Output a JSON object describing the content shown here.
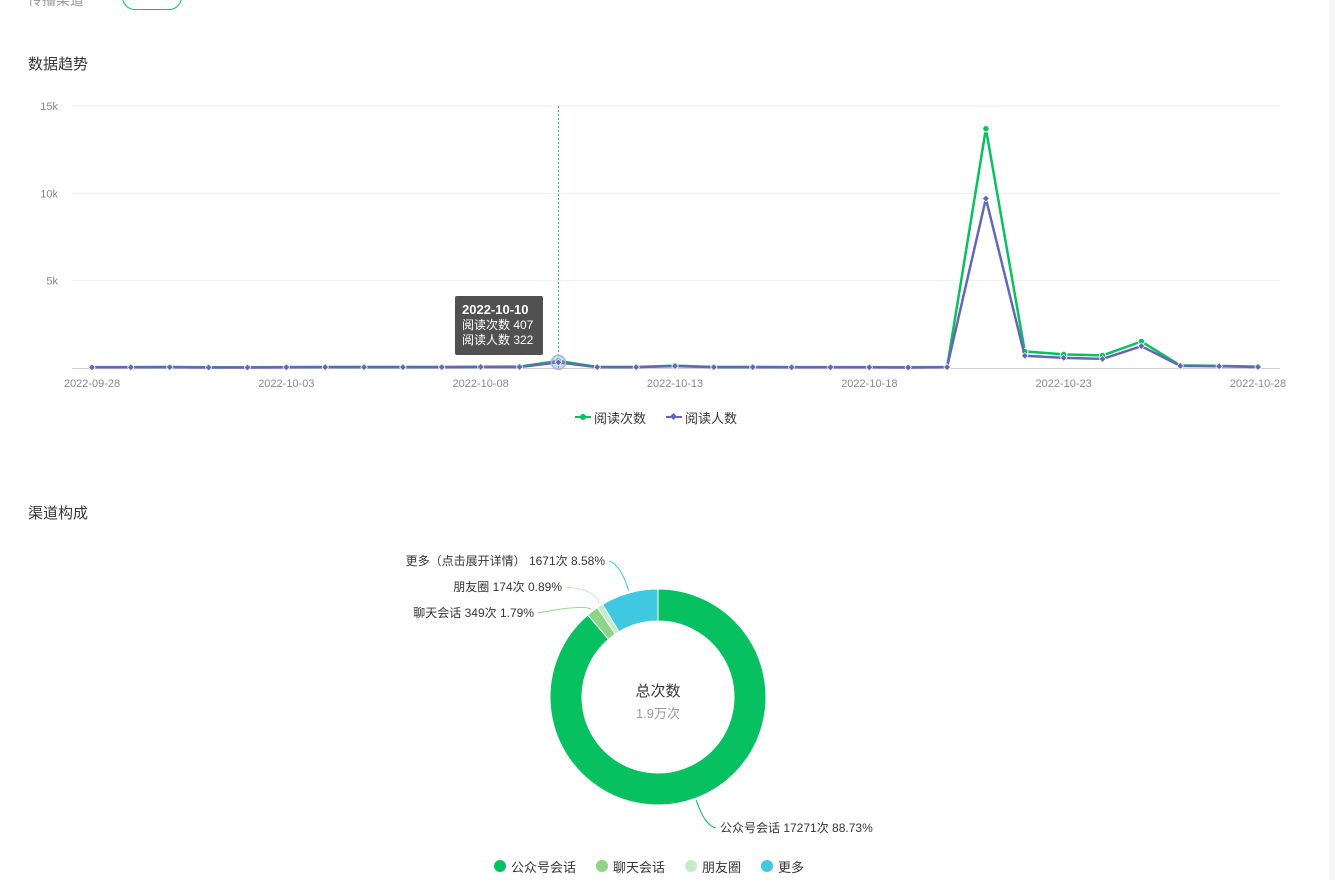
{
  "header": {
    "channel_filter_label": "传播渠道"
  },
  "trend_section": {
    "title": "数据趋势",
    "tooltip": {
      "date": "2022-10-10",
      "reads_text": "阅读次数 407",
      "readers_text": "阅读人数 322"
    }
  },
  "channel_section": {
    "title": "渠道构成",
    "center_title": "总次数",
    "center_value": "1.9万次"
  },
  "chart_data": [
    {
      "type": "line",
      "x": [
        "2022-09-28",
        "2022-09-29",
        "2022-09-30",
        "2022-10-01",
        "2022-10-02",
        "2022-10-03",
        "2022-10-04",
        "2022-10-05",
        "2022-10-06",
        "2022-10-07",
        "2022-10-08",
        "2022-10-09",
        "2022-10-10",
        "2022-10-11",
        "2022-10-12",
        "2022-10-13",
        "2022-10-14",
        "2022-10-15",
        "2022-10-16",
        "2022-10-17",
        "2022-10-18",
        "2022-10-19",
        "2022-10-20",
        "2022-10-21",
        "2022-10-22",
        "2022-10-23",
        "2022-10-24",
        "2022-10-25",
        "2022-10-26",
        "2022-10-27",
        "2022-10-28"
      ],
      "x_tick_labels": [
        "2022-09-28",
        "2022-10-03",
        "2022-10-08",
        "2022-10-13",
        "2022-10-18",
        "2022-10-23",
        "2022-10-28"
      ],
      "y_ticks": [
        {
          "value": 5000,
          "label": "5k"
        },
        {
          "value": 10000,
          "label": "10k"
        },
        {
          "value": 15000,
          "label": "15k"
        }
      ],
      "ylim": [
        0,
        15000
      ],
      "grid": true,
      "legend_position": "bottom-center",
      "highlight_x": "2022-10-10",
      "series": [
        {
          "name": "阅读次数",
          "color": "#07c160",
          "marker": "circle",
          "values": [
            50,
            50,
            60,
            40,
            40,
            50,
            60,
            60,
            60,
            60,
            70,
            80,
            407,
            60,
            60,
            140,
            60,
            60,
            50,
            50,
            50,
            40,
            60,
            13700,
            950,
            780,
            720,
            1520,
            150,
            120,
            80
          ]
        },
        {
          "name": "阅读人数",
          "color": "#6467b9",
          "marker": "diamond",
          "values": [
            40,
            40,
            50,
            30,
            30,
            40,
            50,
            50,
            50,
            50,
            60,
            60,
            322,
            50,
            50,
            110,
            50,
            50,
            40,
            40,
            40,
            30,
            50,
            9700,
            700,
            580,
            520,
            1250,
            120,
            100,
            60
          ]
        }
      ]
    },
    {
      "type": "pie",
      "labels": [
        "公众号会话",
        "聊天会话",
        "朋友圈",
        "更多"
      ],
      "values": [
        17271,
        349,
        174,
        1671
      ],
      "colors": [
        "#07c160",
        "#8cd586",
        "#c4ecc9",
        "#3fc9e1"
      ],
      "slice_labels": [
        "公众号会话 17271次 88.73%",
        "聊天会话 349次 1.79%",
        "朋友圈 174次 0.89%",
        "更多（点击展开详情） 1671次 8.58%"
      ],
      "legend_position": "bottom-center"
    }
  ]
}
